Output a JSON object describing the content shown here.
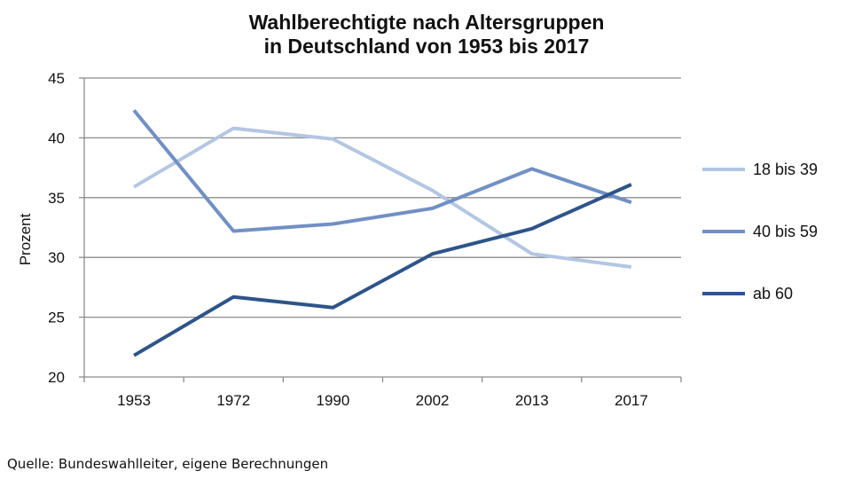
{
  "chart_data": {
    "type": "line",
    "title": [
      "Wahlberechtigte nach Altersgruppen",
      "in Deutschland von 1953 bis 2017"
    ],
    "ylabel": "Prozent",
    "xlabel": "",
    "categories": [
      "1953",
      "1972",
      "1990",
      "2002",
      "2013",
      "2017"
    ],
    "ylim": [
      20,
      45
    ],
    "yticks": [
      20,
      25,
      30,
      35,
      40,
      45
    ],
    "grid": true,
    "legend_position": "right",
    "series": [
      {
        "name": "18 bis 39",
        "color": "#b3c6e2",
        "values": [
          35.9,
          40.8,
          39.9,
          35.6,
          30.3,
          29.2
        ]
      },
      {
        "name": "40 bis 59",
        "color": "#7190c4",
        "values": [
          42.3,
          32.2,
          32.8,
          34.1,
          37.4,
          34.6
        ]
      },
      {
        "name": "ab 60",
        "color": "#2e5489",
        "values": [
          21.8,
          26.7,
          25.8,
          30.3,
          32.4,
          36.1
        ]
      }
    ]
  },
  "source": "Quelle: Bundeswahlleiter, eigene Berechnungen"
}
